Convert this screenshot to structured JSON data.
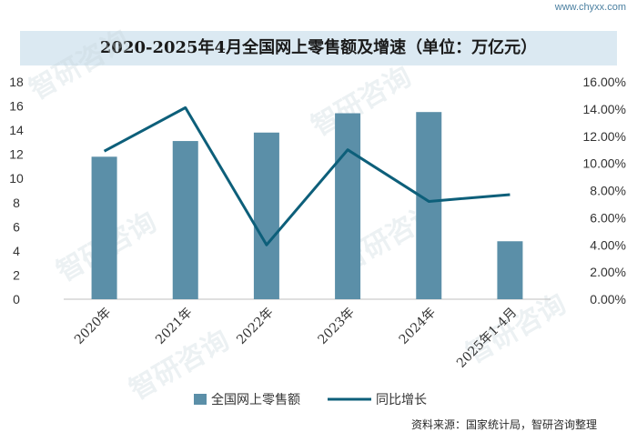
{
  "site_url": "www.chyxx.com",
  "watermark_text": "智研咨询",
  "footer_source": "资料来源：国家统计局，智研咨询整理",
  "colors": {
    "bar": "#5b8fa8",
    "line": "#0d5f7a",
    "title_band": "#dbe9f2"
  },
  "chart_data": {
    "type": "bar",
    "title": "2020-2025年4月全国网上零售额及增速（单位：万亿元）",
    "categories": [
      "2020年",
      "2021年",
      "2022年",
      "2023年",
      "2024年",
      "2025年1-4月"
    ],
    "series": [
      {
        "name": "全国网上零售额",
        "type": "bar",
        "axis": "left",
        "values": [
          11.8,
          13.1,
          13.8,
          15.4,
          15.5,
          4.8
        ]
      },
      {
        "name": "同比增长",
        "type": "line",
        "axis": "right",
        "values": [
          10.9,
          14.1,
          4.0,
          11.0,
          7.2,
          7.7
        ]
      }
    ],
    "y_left": {
      "min": 0,
      "max": 18,
      "ticks": [
        "0",
        "2",
        "4",
        "6",
        "8",
        "10",
        "12",
        "14",
        "16",
        "18"
      ]
    },
    "y_right": {
      "min": 0,
      "max": 16,
      "ticks": [
        "0.00%",
        "2.00%",
        "4.00%",
        "6.00%",
        "8.00%",
        "10.00%",
        "12.00%",
        "14.00%",
        "16.00%"
      ]
    },
    "legend_position": "bottom"
  }
}
